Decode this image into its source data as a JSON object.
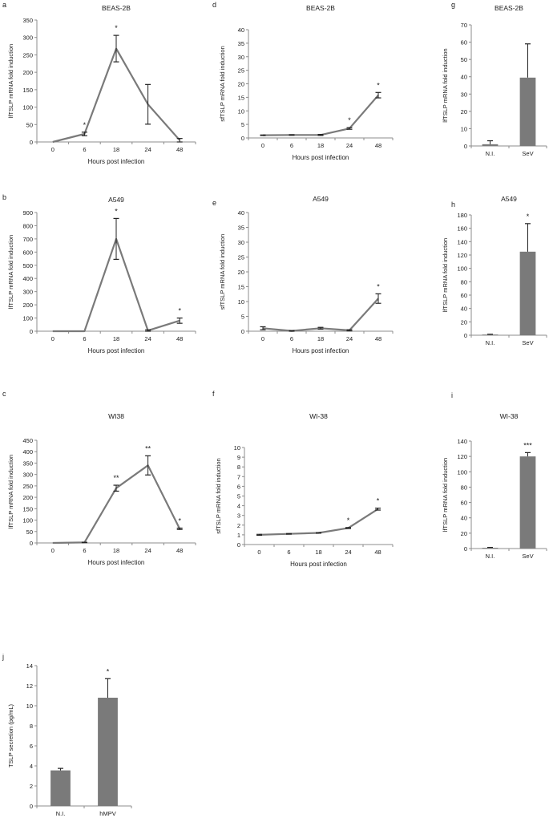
{
  "chart_data": [
    {
      "panel": "a",
      "title": "BEAS-2B",
      "type": "line",
      "categories": [
        "0",
        "6",
        "18",
        "24",
        "48"
      ],
      "values": [
        0,
        23,
        268,
        108,
        5
      ],
      "errors": [
        0,
        5,
        38,
        57,
        5
      ],
      "significance": [
        "",
        "*",
        "*",
        "",
        ""
      ],
      "ylim": [
        0,
        350
      ],
      "yticks": [
        0,
        50,
        100,
        150,
        200,
        250,
        300,
        350
      ],
      "ylabel": "lfTSLP mRNA fold induction",
      "xlabel": "Hours post infection"
    },
    {
      "panel": "d",
      "title": "BEAS-2B",
      "type": "line",
      "categories": [
        "0",
        "6",
        "18",
        "24",
        "48"
      ],
      "values": [
        1,
        1.1,
        1.1,
        3.5,
        15.8
      ],
      "errors": [
        0.1,
        0.1,
        0.2,
        0.3,
        1
      ],
      "significance": [
        "",
        "",
        "",
        "*",
        "*"
      ],
      "ylim": [
        0,
        40
      ],
      "yticks": [
        0,
        5,
        10,
        15,
        20,
        25,
        30,
        35,
        40
      ],
      "ylabel": "sfTSLP mRNA fold induction",
      "xlabel": "Hours post infection"
    },
    {
      "panel": "g",
      "title": "BEAS-2B",
      "type": "bar",
      "categories": [
        "N.I.",
        "SeV"
      ],
      "values": [
        1,
        39.5
      ],
      "errors": [
        2,
        19.5
      ],
      "significance": [
        "",
        ""
      ],
      "ylim": [
        0,
        70
      ],
      "yticks": [
        0,
        10,
        20,
        30,
        40,
        50,
        60,
        70
      ],
      "ylabel": "lfTSLP mRNA fold induction",
      "xlabel": ""
    },
    {
      "panel": "b",
      "title": "A549",
      "type": "line",
      "categories": [
        "0",
        "6",
        "18",
        "24",
        "48"
      ],
      "values": [
        0,
        0,
        700,
        5,
        80
      ],
      "errors": [
        0,
        0,
        155,
        5,
        20
      ],
      "significance": [
        "",
        "",
        "*",
        "",
        "*"
      ],
      "ylim": [
        0,
        900
      ],
      "yticks": [
        0,
        100,
        200,
        300,
        400,
        500,
        600,
        700,
        800,
        900
      ],
      "ylabel": "lfTSLP mRNA fold induction",
      "xlabel": "Hours post infection"
    },
    {
      "panel": "e",
      "title": "A549",
      "type": "line",
      "categories": [
        "0",
        "6",
        "18",
        "24",
        "48"
      ],
      "values": [
        1,
        0.1,
        1,
        0.3,
        11
      ],
      "errors": [
        0.5,
        0.1,
        0.3,
        0.2,
        1.6
      ],
      "significance": [
        "",
        "",
        "",
        "",
        "*"
      ],
      "ylim": [
        0,
        40
      ],
      "yticks": [
        0,
        5,
        10,
        15,
        20,
        25,
        30,
        35,
        40
      ],
      "ylabel": "sfTSLP mRNA fold induction",
      "xlabel": "Hours post infection"
    },
    {
      "panel": "h",
      "title": "A549",
      "type": "bar",
      "categories": [
        "N.I.",
        "SeV"
      ],
      "values": [
        1,
        125
      ],
      "errors": [
        0.5,
        42
      ],
      "significance": [
        "",
        "*"
      ],
      "ylim": [
        0,
        180
      ],
      "yticks": [
        0,
        20,
        40,
        60,
        80,
        100,
        120,
        140,
        160,
        180
      ],
      "ylabel": "lfTSLP mRNA fold induction",
      "xlabel": ""
    },
    {
      "panel": "c",
      "title": "WI38",
      "type": "line",
      "categories": [
        "0",
        "6",
        "18",
        "24",
        "48"
      ],
      "values": [
        0,
        2,
        240,
        340,
        62
      ],
      "errors": [
        0,
        1,
        13,
        42,
        3
      ],
      "significance": [
        "",
        "",
        "**",
        "**",
        "*"
      ],
      "ylim": [
        0,
        450
      ],
      "yticks": [
        0,
        50,
        100,
        150,
        200,
        250,
        300,
        350,
        400,
        450
      ],
      "ylabel": "lfTSLP mRNA fold induction",
      "xlabel": "Hours post infection"
    },
    {
      "panel": "f",
      "title": "WI-38",
      "type": "line",
      "categories": [
        "0",
        "6",
        "18",
        "24",
        "48"
      ],
      "values": [
        1,
        1.1,
        1.2,
        1.7,
        3.65
      ],
      "errors": [
        0.05,
        0.03,
        0.03,
        0.05,
        0.1
      ],
      "significance": [
        "",
        "",
        "",
        "*",
        "*"
      ],
      "ylim": [
        0,
        10
      ],
      "yticks": [
        0,
        1,
        2,
        3,
        4,
        5,
        6,
        7,
        8,
        9,
        10
      ],
      "ylabel": "sfTSLP mRNA fold induction",
      "xlabel": "Hours post infection"
    },
    {
      "panel": "i",
      "title": "WI-38",
      "type": "bar",
      "categories": [
        "N.I.",
        "SeV"
      ],
      "values": [
        1,
        120
      ],
      "errors": [
        0.5,
        5
      ],
      "significance": [
        "",
        "***"
      ],
      "ylim": [
        0,
        140
      ],
      "yticks": [
        0,
        20,
        40,
        60,
        80,
        100,
        120,
        140
      ],
      "ylabel": "lfTSLP mRNA fold induction",
      "xlabel": ""
    },
    {
      "panel": "j",
      "title": "",
      "type": "bar",
      "categories": [
        "N.I.",
        "hMPV"
      ],
      "values": [
        3.55,
        10.8
      ],
      "errors": [
        0.2,
        1.9
      ],
      "significance": [
        "",
        "*"
      ],
      "ylim": [
        0,
        14
      ],
      "yticks": [
        0,
        2,
        4,
        6,
        8,
        10,
        12,
        14
      ],
      "ylabel": "TSLP secretion (pg/mL)",
      "xlabel": ""
    }
  ],
  "colors": {
    "series": "#7a7a7a",
    "bar": "#7a7a7a",
    "axis": "#8c8c8c",
    "error": "#222222"
  }
}
